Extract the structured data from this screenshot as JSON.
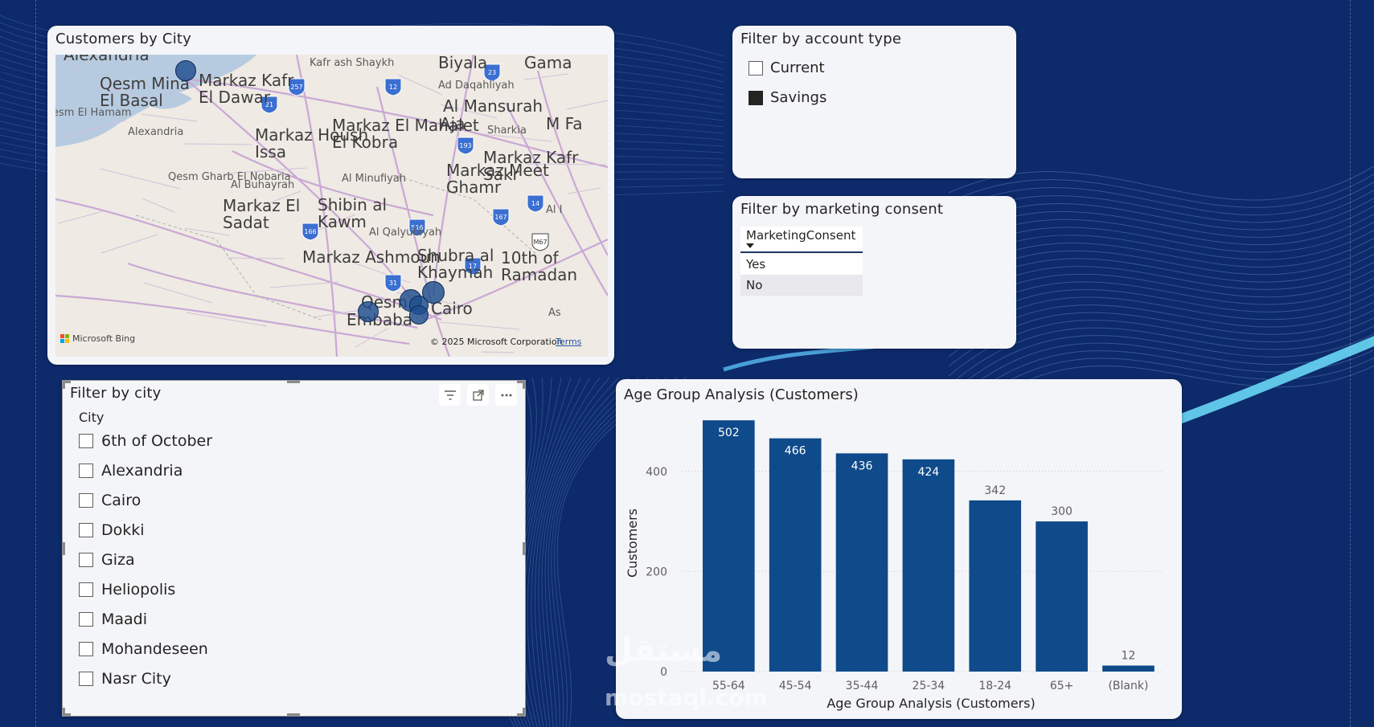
{
  "colors": {
    "background": "#0d2a6b",
    "card": "#f4f5f8",
    "bar": "#0f4a8a",
    "bubble": "#1f4e8e"
  },
  "map": {
    "title": "Customers by City",
    "labels": [
      {
        "text": "Alexandria",
        "size": "big"
      },
      {
        "text": "Qesm Mina El Basal",
        "size": "big"
      },
      {
        "text": "Markaz Kafr El Dawar",
        "size": "big"
      },
      {
        "text": "esm El Hamam",
        "size": "small"
      },
      {
        "text": "Alexandria",
        "size": "small"
      },
      {
        "text": "Kafr ash Shaykh",
        "size": "small"
      },
      {
        "text": "Biyala",
        "size": "big"
      },
      {
        "text": "Gama",
        "size": "big"
      },
      {
        "text": "Ad Daqahliyah",
        "size": "small"
      },
      {
        "text": "Al Mansurah",
        "size": "big"
      },
      {
        "text": "Markaz El Mahalet El Kobra",
        "size": "big"
      },
      {
        "text": "Aja",
        "size": "big"
      },
      {
        "text": "Sharkia",
        "size": "small"
      },
      {
        "text": "Markaz Housh Issa",
        "size": "big"
      },
      {
        "text": "Markaz Kafr Sakr",
        "size": "big"
      },
      {
        "text": "M Fa",
        "size": "big"
      },
      {
        "text": "Qesm Gharb El Nobaria",
        "size": "small"
      },
      {
        "text": "Al Buhayrah",
        "size": "small"
      },
      {
        "text": "Al Minufiyah",
        "size": "small"
      },
      {
        "text": "Markaz Meet Ghamr",
        "size": "big"
      },
      {
        "text": "Markaz El Sadat",
        "size": "big"
      },
      {
        "text": "Shibin al Kawm",
        "size": "big"
      },
      {
        "text": "Al I",
        "size": "small"
      },
      {
        "text": "Al Qalyubiyah",
        "size": "small"
      },
      {
        "text": "Markaz Ashmoun",
        "size": "big"
      },
      {
        "text": "Shubra al Khaymah",
        "size": "big"
      },
      {
        "text": "10th of Ramadan",
        "size": "big"
      },
      {
        "text": "Qesm",
        "size": "big"
      },
      {
        "text": "Cairo",
        "size": "big"
      },
      {
        "text": "Embaba",
        "size": "big"
      },
      {
        "text": "As",
        "size": "small"
      }
    ],
    "shields": [
      "257",
      "21",
      "12",
      "23",
      "193",
      "14",
      "166",
      "516",
      "167",
      "M67",
      "17",
      "31"
    ],
    "attribution": {
      "provider": "Microsoft Bing",
      "copyright": "© 2025 Microsoft Corporation",
      "terms": "Terms"
    }
  },
  "account_type": {
    "title": "Filter by account type",
    "options": [
      {
        "label": "Current",
        "checked": false
      },
      {
        "label": "Savings",
        "checked": true
      }
    ]
  },
  "marketing_consent": {
    "title": "Filter by marketing consent",
    "column_header": "MarketingConsent",
    "rows": [
      "Yes",
      "No"
    ]
  },
  "city": {
    "title": "Filter by city",
    "field_label": "City",
    "options": [
      "6th of October",
      "Alexandria",
      "Cairo",
      "Dokki",
      "Giza",
      "Heliopolis",
      "Maadi",
      "Mohandeseen",
      "Nasr City"
    ],
    "toolbar": {
      "filter_icon": "filter-icon",
      "focus_icon": "focus-mode-icon",
      "more_icon": "more-options-icon"
    }
  },
  "chart_data": {
    "type": "bar",
    "title": "Age Group Analysis (Customers)",
    "xlabel": "Age Group Analysis (Customers)",
    "ylabel": "Customers",
    "categories": [
      "55-64",
      "45-54",
      "35-44",
      "25-34",
      "18-24",
      "65+",
      "(Blank)"
    ],
    "values": [
      502,
      466,
      436,
      424,
      342,
      300,
      12
    ],
    "yticks": [
      0,
      200,
      400
    ],
    "ylim": [
      0,
      520
    ],
    "grid": true,
    "data_labels": true
  },
  "watermark": {
    "arabic": "مستقل",
    "latin": "mostaql.com"
  }
}
